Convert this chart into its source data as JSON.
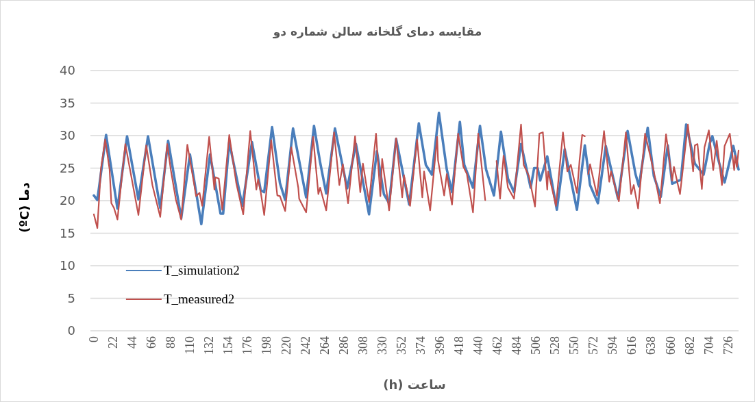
{
  "chart_data": {
    "type": "line",
    "title": "مقایسه دمای گلخانه سالن شماره دو",
    "xlabel": "ساعت (h)",
    "ylabel": "دما (ºC)",
    "xlim": [
      -4,
      738
    ],
    "xticks": [
      0,
      22,
      44,
      66,
      88,
      110,
      132,
      154,
      176,
      198,
      220,
      242,
      264,
      286,
      308,
      330,
      352,
      374,
      396,
      418,
      440,
      462,
      484,
      506,
      528,
      550,
      572,
      594,
      616,
      638,
      660,
      682,
      704,
      726
    ],
    "ylim": [
      0,
      40
    ],
    "yticks": [
      0,
      5,
      10,
      15,
      20,
      25,
      30,
      35,
      40
    ],
    "grid": "y",
    "legend": "left",
    "marker": "none",
    "line_style": "solid",
    "series": [
      {
        "name": "T_simulation2",
        "color": "#4a7ebb",
        "x": [
          0,
          4,
          14,
          27,
          38,
          51,
          62,
          76,
          85,
          100,
          110,
          123,
          133,
          145,
          148,
          155,
          170,
          181,
          191,
          195,
          204,
          213,
          219,
          228,
          243,
          252,
          259,
          266,
          276,
          290,
          300,
          315,
          324,
          332,
          338,
          346,
          361,
          372,
          380,
          387,
          395,
          404,
          410,
          419,
          424,
          434,
          442,
          449,
          458,
          466,
          474,
          481,
          489,
          492,
          500,
          504,
          508,
          511,
          519,
          530,
          539,
          553,
          562,
          568,
          577,
          586,
          600,
          611,
          620,
          624,
          634,
          641,
          649,
          657,
          662,
          670,
          672,
          678,
          688,
          698,
          705,
          708,
          715,
          722,
          732,
          738
        ],
        "values": [
          20.8,
          20.1,
          30.1,
          18.8,
          29.9,
          20.2,
          29.9,
          18.9,
          29.2,
          17.3,
          27.1,
          16.4,
          27.1,
          18.0,
          18.0,
          29.0,
          19.2,
          29.0,
          21.6,
          21.3,
          31.3,
          22.7,
          20.1,
          31.1,
          20.5,
          31.5,
          25.9,
          21.1,
          31.1,
          21.9,
          28.7,
          17.9,
          27.6,
          21.0,
          19.6,
          29.5,
          19.4,
          31.9,
          25.5,
          24.0,
          33.5,
          24.8,
          21.3,
          32.1,
          25.5,
          22.0,
          31.5,
          24.8,
          20.8,
          30.6,
          23.4,
          21.3,
          28.7,
          26.9,
          22.0,
          25.0,
          25.0,
          23.1,
          26.8,
          18.6,
          27.9,
          18.6,
          28.5,
          22.4,
          19.6,
          28.4,
          20.3,
          30.7,
          24.1,
          22.2,
          31.2,
          23.8,
          20.6,
          28.5,
          22.6,
          23.1,
          23.2,
          31.7,
          25.7,
          24.0,
          28.8,
          29.9,
          26.2,
          22.8,
          28.4,
          24.8
        ]
      },
      {
        "name": "T_measured2",
        "color": "#c0504d",
        "x": [
          0,
          4,
          8,
          13,
          18,
          20,
          23,
          27,
          36,
          51,
          60,
          67,
          76,
          84,
          88,
          94,
          100,
          107,
          115,
          117,
          121,
          124,
          132,
          138,
          139,
          143,
          147,
          155,
          163,
          171,
          179,
          186,
          188,
          191,
          195,
          203,
          210,
          213,
          219,
          226,
          234,
          235,
          243,
          251,
          257,
          259,
          266,
          275,
          281,
          285,
          291,
          299,
          305,
          308,
          315,
          323,
          328,
          330,
          338,
          346,
          353,
          355,
          362,
          370,
          376,
          378,
          385,
          393,
          394,
          401,
          404,
          410,
          417,
          423,
          427,
          434,
          440,
          448,
          455,
          461,
          465,
          469,
          474,
          481,
          489,
          492,
          498,
          505,
          510,
          514,
          519,
          520,
          529,
          537,
          542,
          546,
          553,
          556,
          559,
          562,
          564,
          566,
          568,
          576,
          584,
          590,
          592,
          601,
          609,
          615,
          618,
          623,
          631,
          641,
          648,
          655,
          662,
          664,
          671,
          680,
          686,
          688,
          691,
          696,
          699,
          704,
          709,
          713,
          719,
          722,
          728,
          733,
          734,
          736,
          738
        ],
        "values": [
          17.9,
          15.8,
          24.8,
          29.4,
          24.8,
          19.6,
          18.9,
          17.1,
          28.7,
          17.8,
          28.5,
          22.4,
          17.5,
          28.7,
          24.8,
          20.1,
          17.1,
          28.6,
          22.4,
          20.7,
          21.2,
          19.2,
          29.8,
          21.7,
          23.6,
          23.4,
          18.6,
          30.1,
          22.7,
          17.9,
          30.7,
          21.7,
          23.3,
          21.3,
          17.8,
          29.3,
          20.8,
          20.7,
          18.4,
          28.2,
          22.0,
          20.3,
          18.2,
          29.8,
          21.0,
          22.0,
          18.5,
          30.5,
          22.4,
          25.6,
          19.6,
          29.9,
          21.3,
          25.7,
          19.8,
          30.3,
          20.7,
          26.4,
          18.5,
          29.6,
          20.5,
          23.9,
          19.2,
          29.4,
          20.5,
          24.5,
          18.5,
          29.8,
          26.2,
          20.8,
          24.1,
          19.4,
          30.3,
          25.2,
          24.1,
          18.2,
          30.3,
          20.1,
          null,
          26.1,
          20.3,
          26.9,
          22.0,
          20.3,
          31.7,
          25.5,
          23.8,
          19.1,
          30.3,
          30.5,
          21.7,
          24.5,
          19.2,
          30.5,
          24.5,
          25.5,
          21.2,
          26.2,
          30.1,
          29.9,
          null,
          24.1,
          25.6,
          20.8,
          30.7,
          22.9,
          24.5,
          19.9,
          30.5,
          21.0,
          22.4,
          18.8,
          30.3,
          24.5,
          19.6,
          30.2,
          23.1,
          25.2,
          21.0,
          31.7,
          24.5,
          28.5,
          28.7,
          21.8,
          28.2,
          30.8,
          24.7,
          29.2,
          22.4,
          28.4,
          30.3,
          24.7,
          26.9,
          25.2,
          27.7
        ]
      }
    ]
  }
}
